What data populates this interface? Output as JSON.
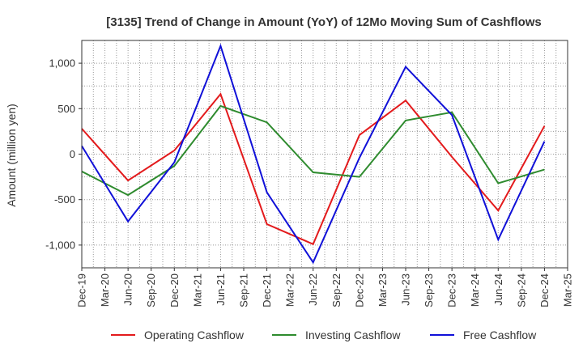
{
  "chart_data": {
    "type": "line",
    "title": "[3135]  Trend of Change in Amount (YoY) of 12Mo Moving Sum of Cashflows",
    "xlabel": "",
    "ylabel": "Amount (million yen)",
    "ylim": [
      -1250,
      1250
    ],
    "yticks": [
      1000,
      500,
      0,
      -500,
      -1000
    ],
    "ytick_labels": [
      "1,000",
      "500",
      "0",
      "-500",
      "-1,000"
    ],
    "categories": [
      "Dec-19",
      "Mar-20",
      "Jun-20",
      "Sep-20",
      "Dec-20",
      "Mar-21",
      "Jun-21",
      "Sep-21",
      "Dec-21",
      "Mar-22",
      "Jun-22",
      "Sep-22",
      "Dec-22",
      "Mar-23",
      "Jun-23",
      "Sep-23",
      "Dec-23",
      "Mar-24",
      "Jun-24",
      "Sep-24",
      "Dec-24",
      "Mar-25"
    ],
    "grid": true,
    "legend_position": "bottom",
    "series": [
      {
        "name": "Operating Cashflow",
        "color": "#e31a1c",
        "points": [
          [
            "Dec-19",
            280
          ],
          [
            "Jun-20",
            -290
          ],
          [
            "Dec-20",
            40
          ],
          [
            "Jun-21",
            660
          ],
          [
            "Dec-21",
            -770
          ],
          [
            "Jun-22",
            -990
          ],
          [
            "Dec-22",
            210
          ],
          [
            "Jun-23",
            590
          ],
          [
            "Dec-23",
            -30
          ],
          [
            "Jun-24",
            -620
          ],
          [
            "Dec-24",
            310
          ]
        ]
      },
      {
        "name": "Investing Cashflow",
        "color": "#2e8b2e",
        "points": [
          [
            "Dec-19",
            -190
          ],
          [
            "Jun-20",
            -450
          ],
          [
            "Dec-20",
            -130
          ],
          [
            "Jun-21",
            530
          ],
          [
            "Dec-21",
            350
          ],
          [
            "Jun-22",
            -200
          ],
          [
            "Dec-22",
            -250
          ],
          [
            "Jun-23",
            370
          ],
          [
            "Dec-23",
            460
          ],
          [
            "Jun-24",
            -320
          ],
          [
            "Dec-24",
            -170
          ]
        ]
      },
      {
        "name": "Free Cashflow",
        "color": "#1010d8",
        "points": [
          [
            "Dec-19",
            90
          ],
          [
            "Jun-20",
            -740
          ],
          [
            "Dec-20",
            -90
          ],
          [
            "Jun-21",
            1190
          ],
          [
            "Dec-21",
            -420
          ],
          [
            "Jun-22",
            -1190
          ],
          [
            "Dec-22",
            -40
          ],
          [
            "Jun-23",
            960
          ],
          [
            "Dec-23",
            430
          ],
          [
            "Jun-24",
            -940
          ],
          [
            "Dec-24",
            140
          ]
        ]
      }
    ]
  }
}
